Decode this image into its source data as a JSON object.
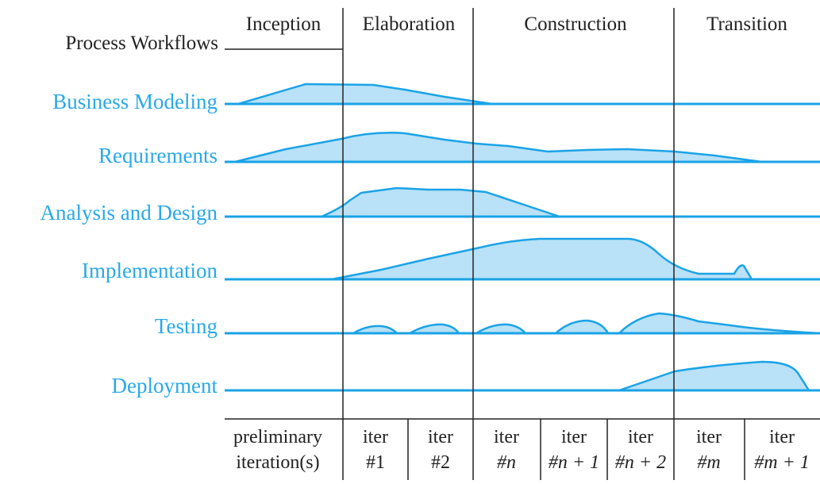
{
  "title": "Process Workflows",
  "phases": [
    "Inception",
    "Elaboration",
    "Construction",
    "Transition"
  ],
  "workflows": [
    "Business Modeling",
    "Requirements",
    "Analysis and Design",
    "Implementation",
    "Testing",
    "Deployment"
  ],
  "iterations": [
    {
      "line1": "preliminary",
      "line2": "iteration(s)",
      "italic": false
    },
    {
      "line1": "iter",
      "line2": "#1",
      "italic": false
    },
    {
      "line1": "iter",
      "line2": "#2",
      "italic": false
    },
    {
      "line1": "iter",
      "line2": "#n",
      "italic": true
    },
    {
      "line1": "iter",
      "line2": "#n + 1",
      "italic": true
    },
    {
      "line1": "iter",
      "line2": "#n + 2",
      "italic": true
    },
    {
      "line1": "iter",
      "line2": "#m",
      "italic": true
    },
    {
      "line1": "iter",
      "line2": "#m + 1",
      "italic": true
    }
  ],
  "colors": {
    "workflow_text": "#29a9e8",
    "workflow_line": "#1aa3e6",
    "fill": "#b9e1f7",
    "grid": "#222222"
  }
}
